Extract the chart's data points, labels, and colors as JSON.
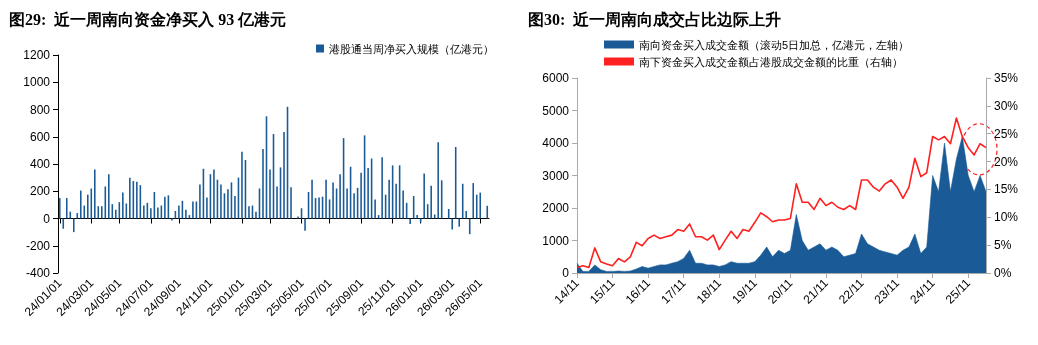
{
  "chart_data": [
    {
      "type": "bar",
      "title": "图29:  近一周南向资金净买入 93 亿港元",
      "categories": [
        "24/01/01",
        null,
        null,
        null,
        null,
        null,
        null,
        null,
        null,
        "24/03/01",
        null,
        null,
        null,
        null,
        null,
        null,
        null,
        "24/05/01",
        null,
        null,
        null,
        null,
        null,
        null,
        null,
        null,
        "24/07/01",
        null,
        null,
        null,
        null,
        null,
        null,
        null,
        "24/09/01",
        null,
        null,
        null,
        null,
        null,
        null,
        null,
        null,
        "24/11/01",
        null,
        null,
        null,
        null,
        null,
        null,
        null,
        null,
        "25/01/01",
        null,
        null,
        null,
        null,
        null,
        null,
        null,
        "25/03/01",
        null,
        null,
        null,
        null,
        null,
        null,
        null,
        null,
        "25/05/01",
        null,
        null,
        null,
        null,
        null,
        null,
        null,
        "25/07/01",
        null,
        null,
        null,
        null,
        null,
        null,
        null,
        null,
        "25/09/01",
        null,
        null,
        null,
        null,
        null,
        null,
        null,
        null,
        "25/11/01",
        null,
        null,
        null,
        null,
        null,
        null,
        null,
        "26/01/01",
        null,
        null,
        null,
        null,
        null,
        null,
        null,
        null,
        "26/03/01",
        null,
        null,
        null,
        null,
        null,
        null,
        null,
        "26/05/01",
        null,
        null
      ],
      "series": [
        {
          "name": "港股通当周净买入规模（亿港元）",
          "color": "#1a5a96",
          "values": [
            150,
            -75,
            150,
            50,
            -100,
            40,
            205,
            95,
            175,
            220,
            360,
            90,
            90,
            235,
            325,
            105,
            65,
            120,
            190,
            110,
            300,
            275,
            270,
            245,
            95,
            115,
            75,
            195,
            80,
            95,
            160,
            170,
            -15,
            55,
            95,
            130,
            65,
            25,
            125,
            125,
            250,
            365,
            155,
            325,
            360,
            285,
            250,
            185,
            215,
            265,
            165,
            300,
            490,
            430,
            90,
            95,
            50,
            220,
            510,
            750,
            360,
            620,
            235,
            375,
            635,
            820,
            230,
            0,
            15,
            75,
            -90,
            195,
            285,
            150,
            155,
            160,
            285,
            140,
            265,
            220,
            325,
            590,
            220,
            380,
            185,
            225,
            335,
            610,
            370,
            440,
            140,
            25,
            450,
            175,
            285,
            390,
            255,
            390,
            205,
            115,
            -40,
            165,
            25,
            -30,
            330,
            105,
            240,
            30,
            560,
            280,
            0,
            70,
            -80,
            525,
            -60,
            255,
            55,
            -115,
            260,
            175,
            190,
            0,
            93
          ]
        }
      ],
      "ylim": [
        -400,
        1200
      ],
      "yticks": [
        -400,
        -200,
        0,
        200,
        400,
        600,
        800,
        1000,
        1200
      ],
      "legend": "top right"
    },
    {
      "type": "line",
      "title": "图30:  近一周南向成交占比边际上升",
      "categories": [
        "14/11",
        null,
        null,
        null,
        null,
        null,
        "15/11",
        null,
        null,
        null,
        null,
        null,
        "16/11",
        null,
        null,
        null,
        null,
        null,
        "17/11",
        null,
        null,
        null,
        null,
        null,
        "18/11",
        null,
        null,
        null,
        null,
        null,
        "19/11",
        null,
        null,
        null,
        null,
        null,
        "20/11",
        null,
        null,
        null,
        null,
        null,
        "21/11",
        null,
        null,
        null,
        null,
        null,
        "22/11",
        null,
        null,
        null,
        null,
        null,
        "23/11",
        null,
        null,
        null,
        null,
        null,
        "24/11",
        null,
        null,
        null,
        null,
        null,
        "25/11",
        null,
        null,
        null
      ],
      "series": [
        {
          "name": "南向资金买入成交金额（滚动5日加总，亿港元，左轴）",
          "type": "area",
          "color": "#1a5a96",
          "values": [
            300,
            50,
            50,
            250,
            100,
            50,
            50,
            60,
            50,
            60,
            120,
            200,
            150,
            200,
            250,
            250,
            300,
            350,
            450,
            700,
            300,
            300,
            250,
            250,
            200,
            250,
            350,
            300,
            300,
            300,
            350,
            550,
            800,
            500,
            700,
            600,
            700,
            1800,
            1000,
            700,
            800,
            900,
            700,
            800,
            700,
            500,
            550,
            600,
            1200,
            900,
            800,
            700,
            650,
            600,
            550,
            700,
            800,
            1200,
            600,
            800,
            3000,
            2500,
            4000,
            2500,
            3500,
            4200,
            3000,
            2500,
            3000,
            2500
          ]
        },
        {
          "name": "南下资金买入成交金额占港股成交金额的比重（右轴）",
          "type": "line",
          "axis": "y2",
          "color": "#ff2020",
          "values": [
            1.0,
            1.3,
            1.0,
            4.5,
            2.0,
            1.6,
            1.3,
            2.6,
            2.0,
            2.9,
            5.5,
            4.9,
            6.2,
            6.8,
            6.2,
            6.5,
            6.8,
            7.8,
            7.5,
            8.8,
            6.5,
            6.5,
            5.9,
            6.8,
            4.2,
            5.9,
            7.5,
            6.2,
            7.8,
            7.5,
            9.1,
            10.8,
            10.1,
            9.2,
            9.5,
            9.5,
            9.8,
            16,
            12.7,
            12.7,
            11.4,
            13.4,
            12.1,
            12.7,
            11.8,
            11.4,
            12.1,
            11.4,
            16.7,
            16.7,
            15.4,
            14.7,
            16,
            16.7,
            15.4,
            13.4,
            15.4,
            20.6,
            17.3,
            18,
            24.5,
            23.9,
            24.5,
            23.2,
            27.8,
            24.5,
            22.5,
            21.2,
            23.2,
            22.5
          ]
        }
      ],
      "ylim": [
        0,
        6000
      ],
      "yticks": [
        0,
        1000,
        2000,
        3000,
        4000,
        5000,
        6000
      ],
      "y2lim": [
        0,
        35
      ],
      "y2ticks": [
        {
          "value": 0,
          "label": "0%"
        },
        {
          "value": 5,
          "label": "5%"
        },
        {
          "value": 10,
          "label": "10%"
        },
        {
          "value": 15,
          "label": "15%"
        },
        {
          "value": 20,
          "label": "20%"
        },
        {
          "value": 25,
          "label": "25%"
        },
        {
          "value": 30,
          "label": "30%"
        },
        {
          "value": 35,
          "label": "35%"
        }
      ],
      "legend": "top"
    }
  ]
}
